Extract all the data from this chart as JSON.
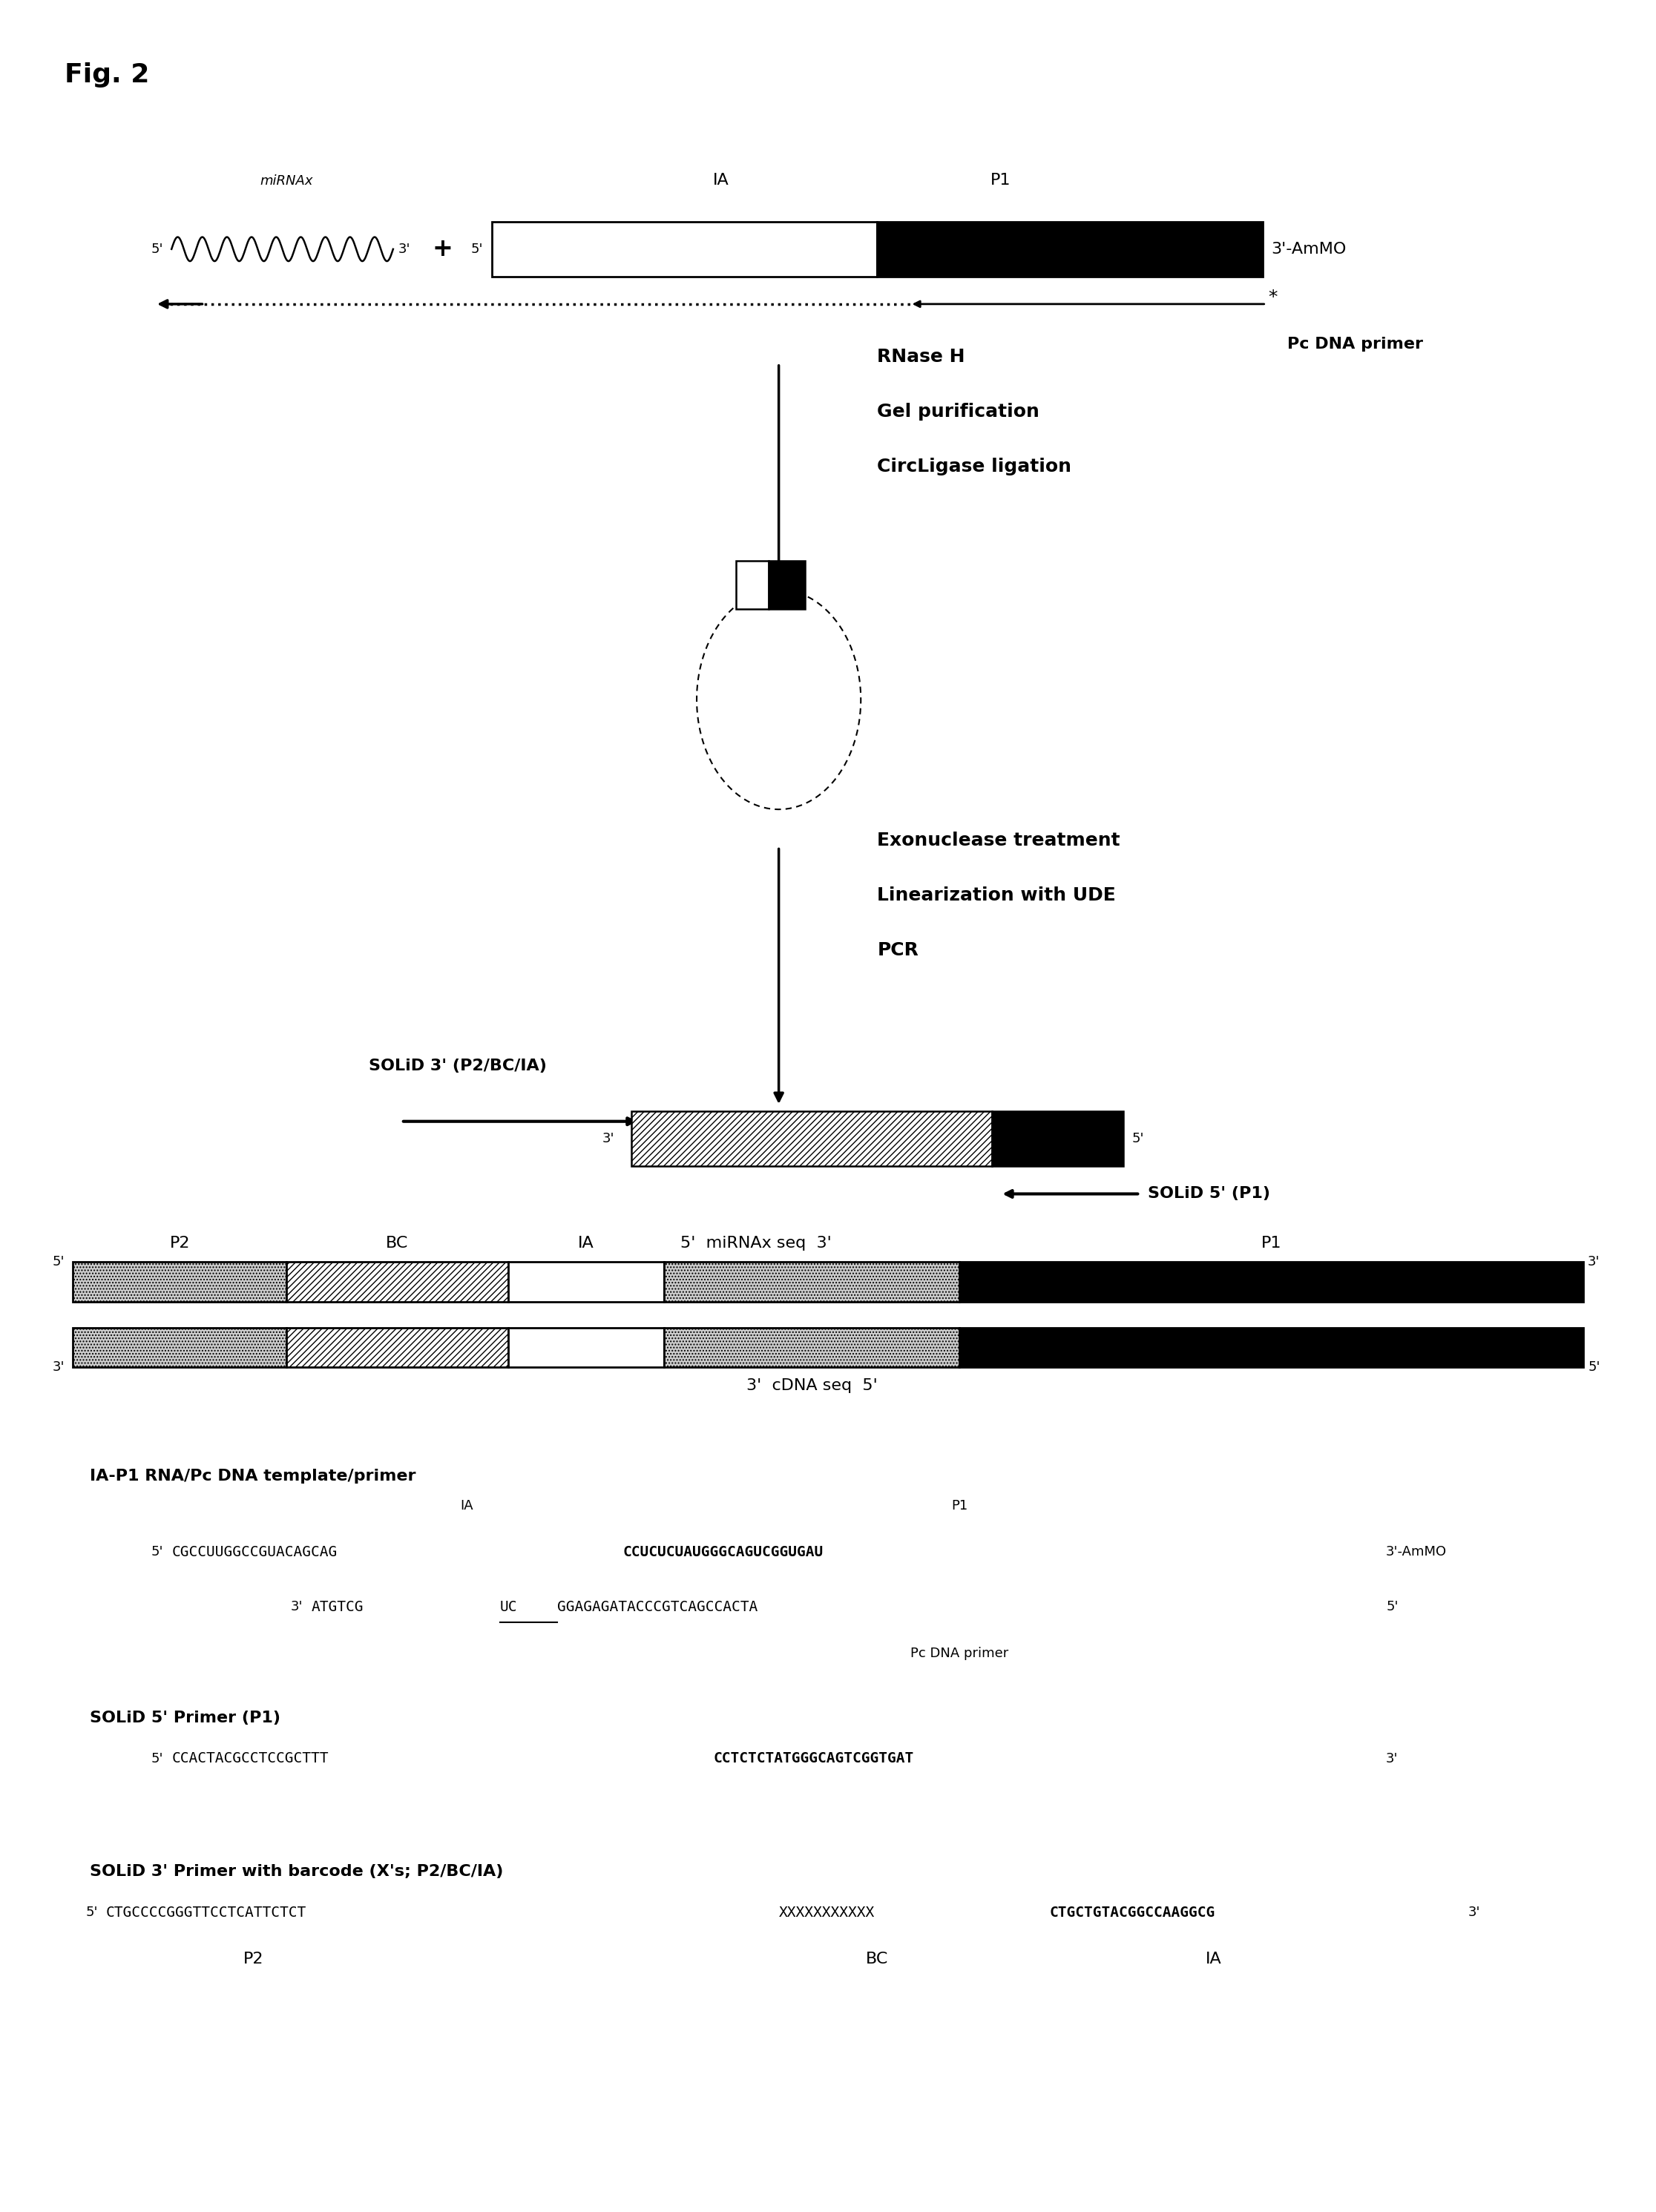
{
  "fig_label": "Fig. 2",
  "background_color": "#ffffff",
  "title_fontsize": 26,
  "label_fontsize": 20,
  "text_fontsize": 18,
  "small_fontsize": 16,
  "seq_fontsize": 14,
  "tiny_fontsize": 13
}
